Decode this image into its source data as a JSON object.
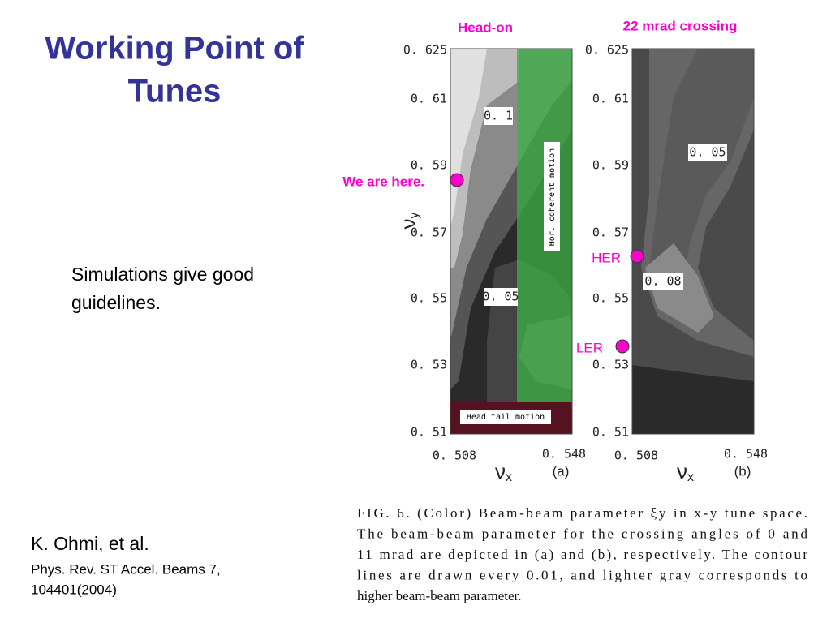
{
  "title": [
    "Working Point of",
    "Tunes"
  ],
  "body": [
    "Simulations give good",
    "guidelines."
  ],
  "reference": {
    "author": "K. Ohmi, et al.",
    "citation": [
      "Phys. Rev. ST Accel. Beams 7,",
      "104401(2004)"
    ]
  },
  "figure": {
    "panels": [
      {
        "heading": "Head-on",
        "yticks": [
          "0. 625",
          "0. 61",
          "0. 59",
          "0. 57",
          "0. 55",
          "0. 53",
          "0. 51"
        ],
        "xticks": [
          "0. 508",
          "0. 548"
        ],
        "xlabel": {
          "symbol": "ν",
          "subscript": "x"
        },
        "ylabel": {
          "symbol": "ν",
          "subscript": "y"
        },
        "panel_label": "(a)",
        "contour_labels": [
          "0. 1",
          "0. 05"
        ],
        "annotations": [
          "Hor. coherent motion",
          "Head tail motion"
        ],
        "markers": [
          "We are here."
        ]
      },
      {
        "heading": "22 mrad crossing",
        "yticks": [
          "0. 625",
          "0. 61",
          "0. 59",
          "0. 57",
          "0. 55",
          "0. 53",
          "0. 51"
        ],
        "xticks": [
          "0. 508",
          "0. 548"
        ],
        "xlabel": {
          "symbol": "ν",
          "subscript": "x"
        },
        "panel_label": "(b)",
        "contour_labels": [
          "0. 05",
          "0. 08"
        ],
        "markers": [
          "HER",
          "LER"
        ]
      }
    ],
    "caption": [
      "FIG. 6. (Color) Beam-beam parameter ξy in x-y tune space.",
      "The beam-beam parameter for the crossing angles of 0 and",
      "11 mrad are depicted in (a) and (b), respectively. The contour",
      "lines are drawn every 0.01, and lighter gray corresponds to",
      "higher beam-beam parameter."
    ]
  }
}
